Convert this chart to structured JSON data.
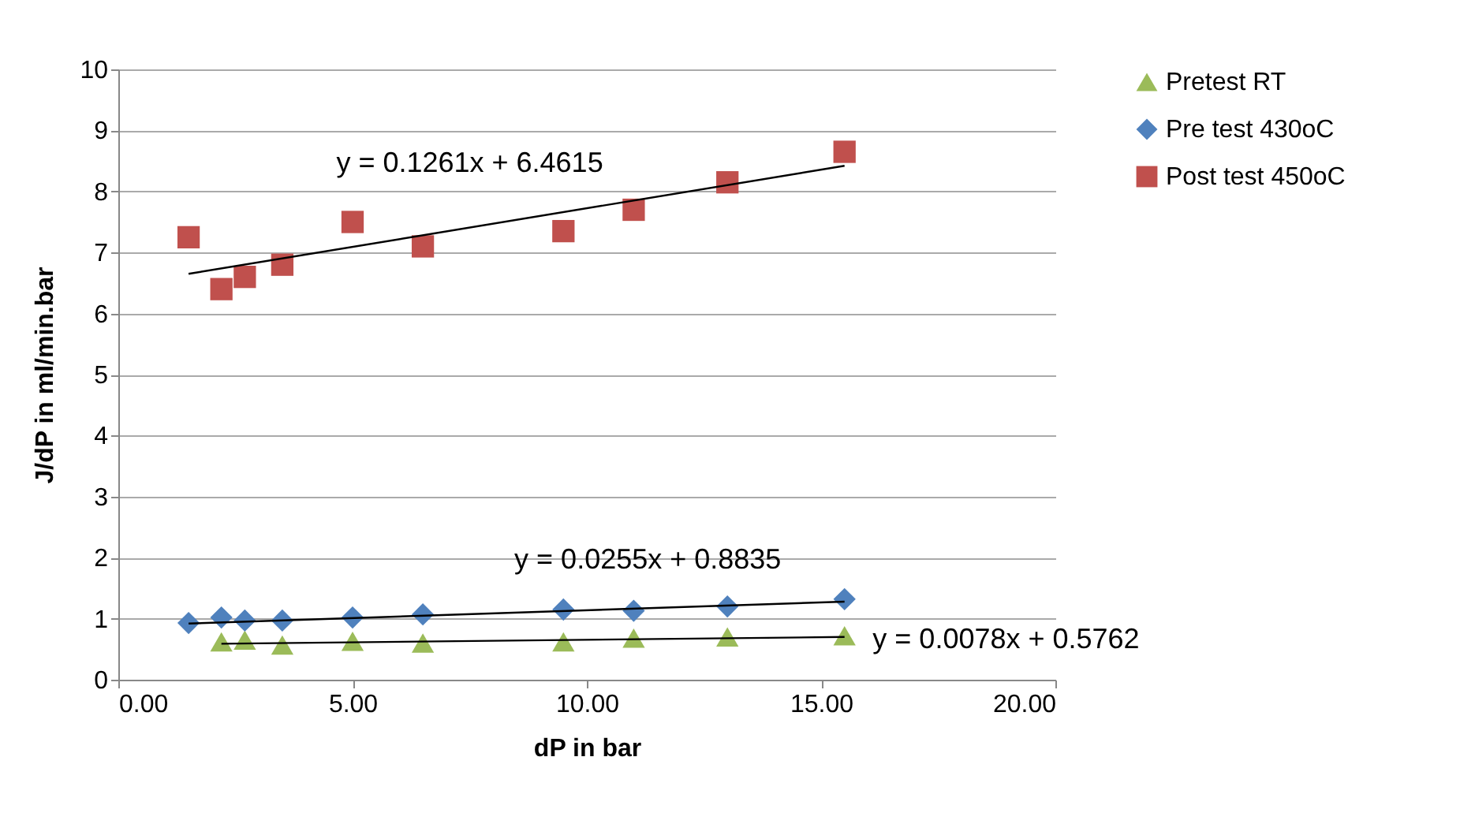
{
  "chart_data": {
    "type": "scatter",
    "xlabel": "dP in bar",
    "ylabel": "J/dP in ml/min.bar",
    "x": [
      1.5,
      2.2,
      2.7,
      3.5,
      5,
      6.5,
      9.5,
      11,
      13,
      15.5
    ],
    "series": [
      {
        "name": "Pretest RT",
        "color": "#9bbb59",
        "marker": "triangle",
        "values": [
          null,
          0.62,
          0.65,
          0.57,
          0.63,
          0.6,
          0.62,
          0.68,
          0.7,
          0.72
        ]
      },
      {
        "name": "Pre test 430oC",
        "color": "#4f81bd",
        "marker": "diamond",
        "values": [
          0.93,
          1.02,
          0.97,
          0.97,
          1.02,
          1.07,
          1.15,
          1.13,
          1.2,
          1.32
        ]
      },
      {
        "name": "Post test 450oC",
        "color": "#c0504d",
        "marker": "square",
        "values": [
          7.25,
          6.4,
          6.6,
          6.8,
          7.5,
          7.1,
          7.35,
          7.7,
          8.15,
          8.65
        ]
      },
      {
        "type": "line",
        "color": "#000000",
        "marker": "none",
        "x": [
          2.2,
          15.5
        ],
        "values": [
          0.59,
          0.7
        ]
      },
      {
        "type": "line",
        "color": "#000000",
        "marker": "none",
        "x": [
          1.5,
          15.5
        ],
        "values": [
          0.92,
          1.28
        ]
      },
      {
        "type": "line",
        "color": "#000000",
        "marker": "none",
        "x": [
          1.5,
          15.5
        ],
        "values": [
          6.65,
          8.42
        ]
      }
    ],
    "annotations": [
      "y = 0.1261x + 6.4615",
      "y = 0.0255x + 0.8835",
      "y = 0.0078x + 0.5762"
    ],
    "xlim": [
      0,
      20
    ],
    "xticks": [
      {
        "value": 0,
        "label": "0.00"
      },
      {
        "value": 5,
        "label": "5.00"
      },
      {
        "value": 10,
        "label": "10.00"
      },
      {
        "value": 15,
        "label": "15.00"
      },
      {
        "value": 20,
        "label": "20.00"
      }
    ],
    "ylim": [
      0,
      10
    ],
    "yticks": [
      0,
      1,
      2,
      3,
      4,
      5,
      6,
      7,
      8,
      9,
      10
    ],
    "grid": "y",
    "legend": "right"
  }
}
